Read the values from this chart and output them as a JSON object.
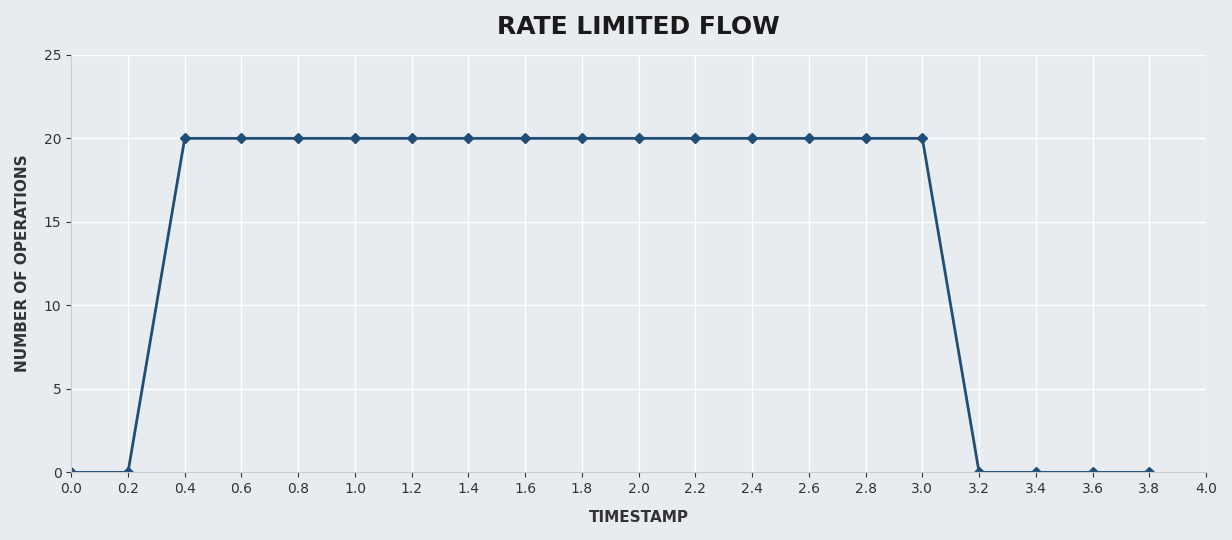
{
  "title": "RATE LIMITED FLOW",
  "xlabel": "TIMESTAMP",
  "ylabel": "NUMBER OF OPERATIONS",
  "x": [
    0.0,
    0.2,
    0.4,
    0.6,
    0.8,
    1.0,
    1.2,
    1.4,
    1.6,
    1.8,
    2.0,
    2.2,
    2.4,
    2.6,
    2.8,
    3.0,
    3.2,
    3.4,
    3.6,
    3.8
  ],
  "y": [
    0,
    0,
    20,
    20,
    20,
    20,
    20,
    20,
    20,
    20,
    20,
    20,
    20,
    20,
    20,
    20,
    0,
    0,
    0,
    0
  ],
  "xlim": [
    0.0,
    4.0
  ],
  "ylim": [
    0,
    25
  ],
  "xticks": [
    0.0,
    0.2,
    0.4,
    0.6,
    0.8,
    1.0,
    1.2,
    1.4,
    1.6,
    1.8,
    2.0,
    2.2,
    2.4,
    2.6,
    2.8,
    3.0,
    3.2,
    3.4,
    3.6,
    3.8,
    4.0
  ],
  "yticks": [
    0,
    5,
    10,
    15,
    20,
    25
  ],
  "line_color": "#1f4e79",
  "marker": "D",
  "marker_size": 5,
  "line_width": 2.0,
  "background_color": "#e8ecf0",
  "grid_color": "#ffffff",
  "title_fontsize": 18,
  "axis_label_fontsize": 11,
  "tick_fontsize": 10
}
